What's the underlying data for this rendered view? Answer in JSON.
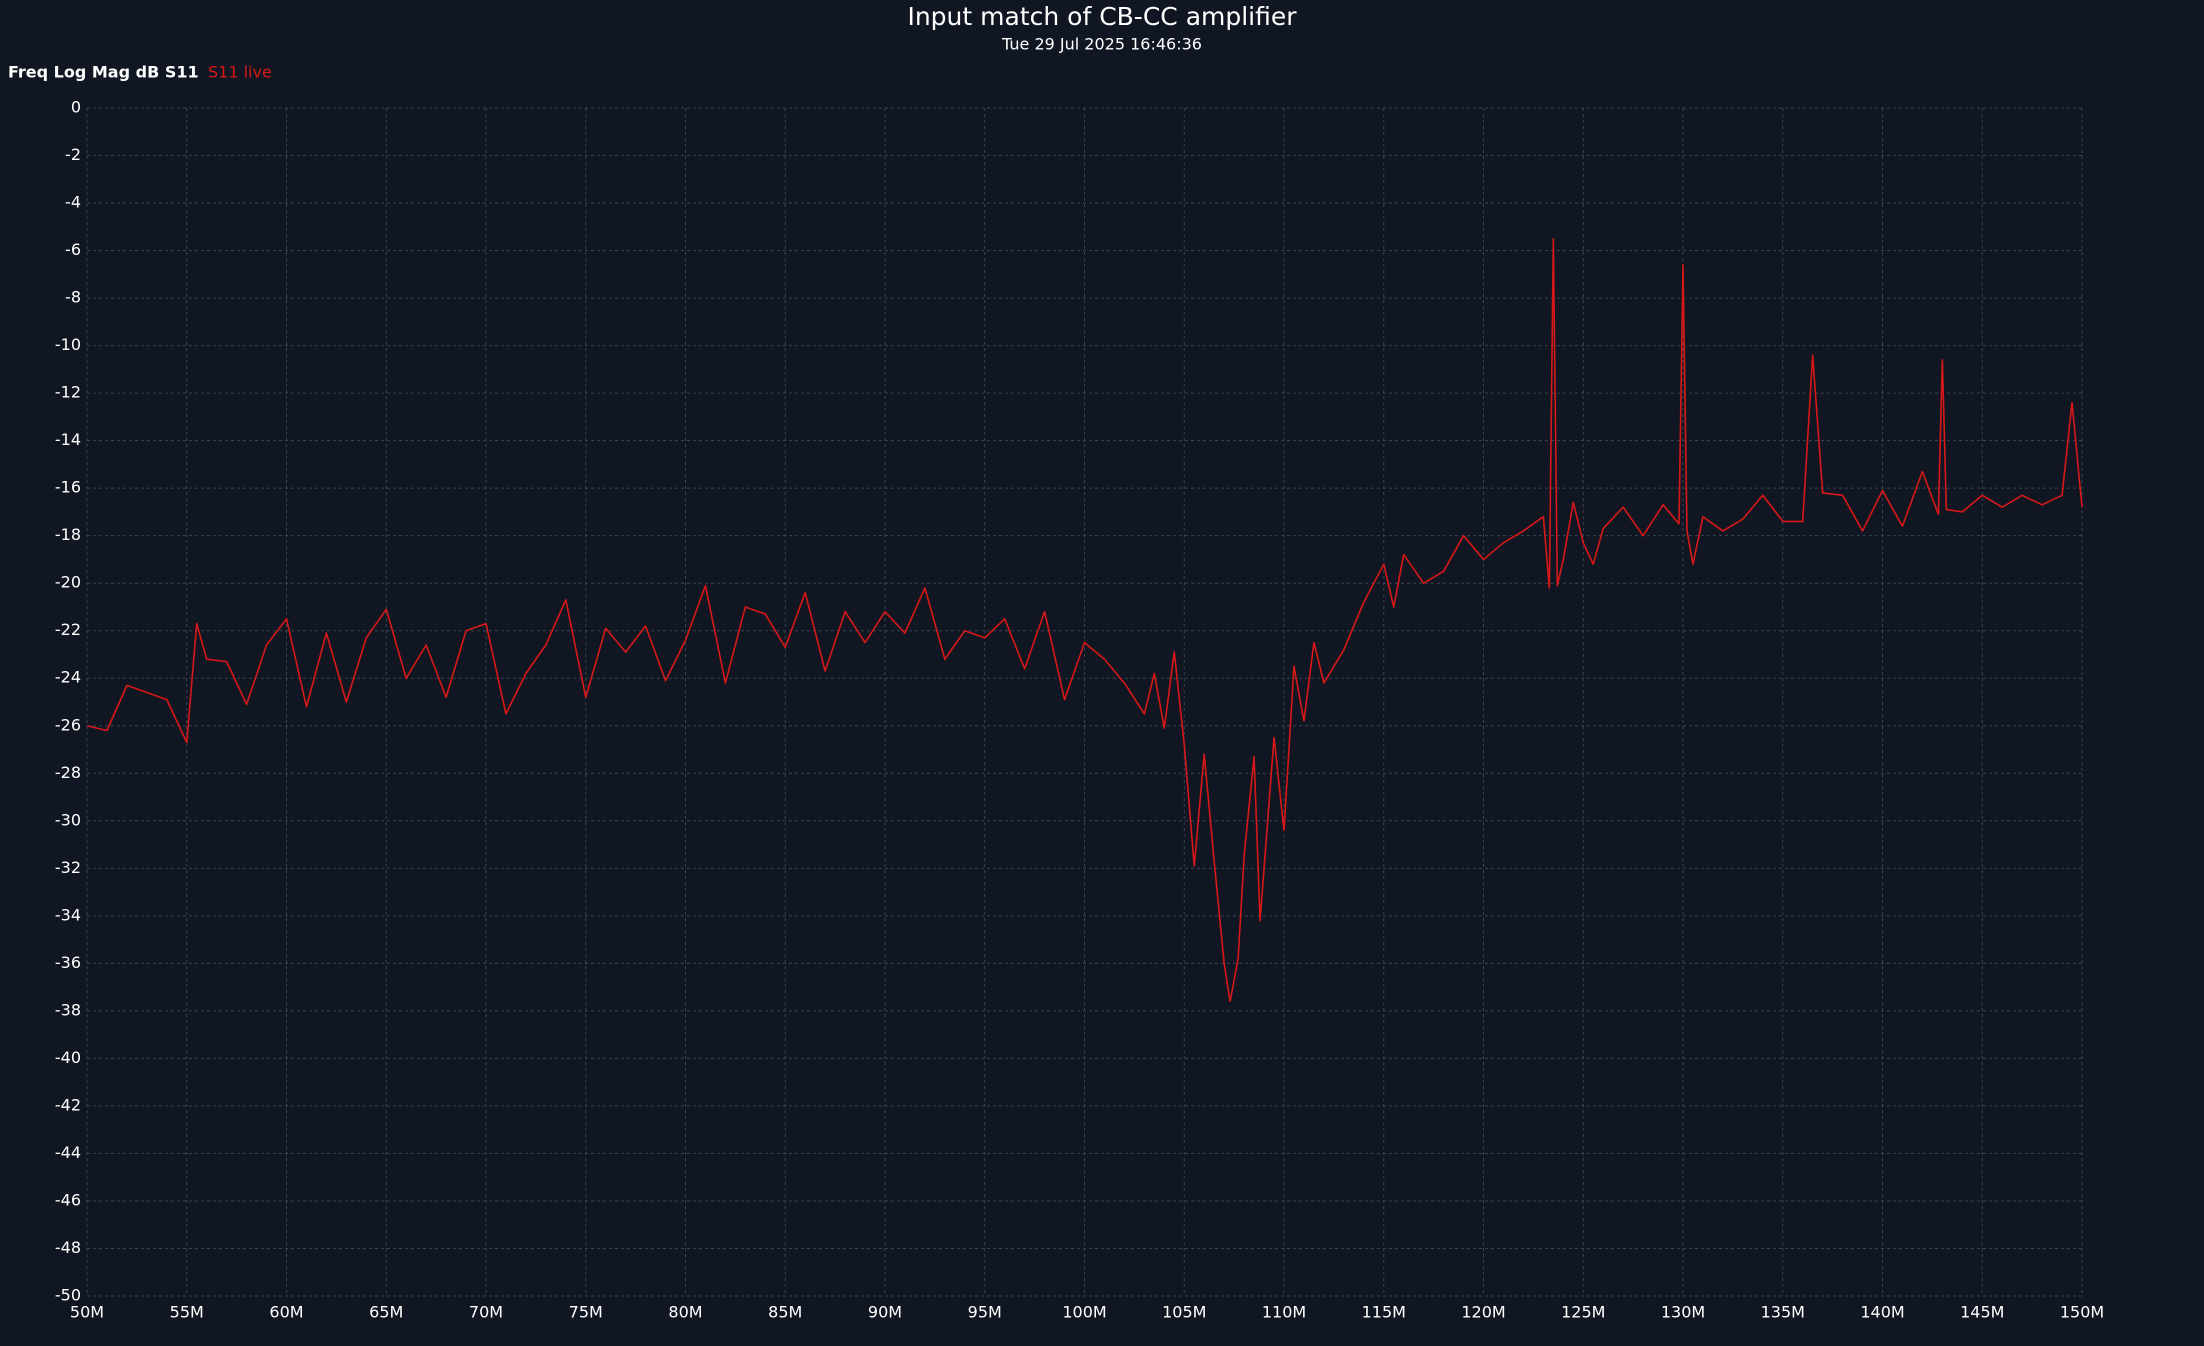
{
  "chart_data": {
    "type": "line",
    "title": "Input match of CB-CC amplifier",
    "subtitle": "Tue 29 Jul 2025 16:46:36",
    "y_label": "Freq Log Mag dB S11",
    "x": [
      50,
      51,
      52,
      53,
      54,
      55,
      55.5,
      56,
      57,
      58,
      59,
      60,
      61,
      62,
      63,
      64,
      65,
      66,
      67,
      68,
      69,
      70,
      71,
      72,
      73,
      74,
      75,
      76,
      77,
      78,
      79,
      80,
      81,
      82,
      83,
      84,
      85,
      86,
      87,
      88,
      89,
      90,
      91,
      92,
      93,
      94,
      95,
      96,
      97,
      98,
      99,
      100,
      101,
      102,
      103,
      103.5,
      104,
      104.5,
      105,
      105.5,
      106,
      106.5,
      107,
      107.3,
      107.7,
      108,
      108.5,
      108.8,
      109.5,
      110,
      110.5,
      111,
      111.5,
      112,
      113,
      114,
      115,
      115.5,
      116,
      117,
      118,
      119,
      120,
      121,
      122,
      123,
      123.3,
      123.5,
      123.7,
      124,
      124.5,
      125,
      125.5,
      126,
      127,
      128,
      129,
      129.8,
      130,
      130.2,
      130.5,
      131,
      132,
      133,
      134,
      135,
      136,
      136.5,
      137,
      138,
      139,
      140,
      141,
      142,
      142.8,
      143,
      143.2,
      144,
      145,
      146,
      147,
      148,
      149,
      149.5,
      150
    ],
    "series": [
      {
        "name": "S11 live",
        "color": "#d81818",
        "values": [
          -26.0,
          -26.2,
          -24.3,
          -24.6,
          -24.9,
          -26.7,
          -21.7,
          -23.2,
          -23.3,
          -25.1,
          -22.6,
          -21.5,
          -25.2,
          -22.1,
          -25.0,
          -22.3,
          -21.1,
          -24.0,
          -22.6,
          -24.8,
          -22.0,
          -21.7,
          -25.5,
          -23.8,
          -22.6,
          -20.7,
          -24.8,
          -21.9,
          -22.9,
          -21.8,
          -24.1,
          -22.4,
          -20.1,
          -24.2,
          -21.0,
          -21.3,
          -22.7,
          -20.4,
          -23.7,
          -21.2,
          -22.5,
          -21.2,
          -22.1,
          -20.2,
          -23.2,
          -22.0,
          -22.3,
          -21.5,
          -23.6,
          -21.2,
          -24.9,
          -22.5,
          -23.2,
          -24.2,
          -25.5,
          -23.8,
          -26.1,
          -22.9,
          -26.8,
          -31.9,
          -27.2,
          -31.7,
          -36.0,
          -37.6,
          -35.8,
          -31.5,
          -27.3,
          -34.2,
          -26.5,
          -30.4,
          -23.5,
          -25.8,
          -22.5,
          -24.2,
          -22.8,
          -20.8,
          -19.2,
          -21.0,
          -18.8,
          -20.0,
          -19.5,
          -18.0,
          -19.0,
          -18.3,
          -17.8,
          -17.2,
          -20.2,
          -5.5,
          -20.1,
          -19.0,
          -16.6,
          -18.3,
          -19.2,
          -17.7,
          -16.8,
          -18.0,
          -16.7,
          -17.5,
          -6.6,
          -17.8,
          -19.2,
          -17.2,
          -17.8,
          -17.3,
          -16.3,
          -17.4,
          -17.4,
          -10.4,
          -16.2,
          -16.3,
          -17.8,
          -16.1,
          -17.6,
          -15.3,
          -17.1,
          -10.6,
          -16.9,
          -17.0,
          -16.3,
          -16.8,
          -16.3,
          -16.7,
          -16.3,
          -12.4,
          -16.8
        ]
      }
    ],
    "xlim": [
      50,
      150
    ],
    "xticks": [
      {
        "value": 50,
        "label": "50M"
      },
      {
        "value": 55,
        "label": "55M"
      },
      {
        "value": 60,
        "label": "60M"
      },
      {
        "value": 65,
        "label": "65M"
      },
      {
        "value": 70,
        "label": "70M"
      },
      {
        "value": 75,
        "label": "75M"
      },
      {
        "value": 80,
        "label": "80M"
      },
      {
        "value": 85,
        "label": "85M"
      },
      {
        "value": 90,
        "label": "90M"
      },
      {
        "value": 95,
        "label": "95M"
      },
      {
        "value": 100,
        "label": "100M"
      },
      {
        "value": 105,
        "label": "105M"
      },
      {
        "value": 110,
        "label": "110M"
      },
      {
        "value": 115,
        "label": "115M"
      },
      {
        "value": 120,
        "label": "120M"
      },
      {
        "value": 125,
        "label": "125M"
      },
      {
        "value": 130,
        "label": "130M"
      },
      {
        "value": 135,
        "label": "135M"
      },
      {
        "value": 140,
        "label": "140M"
      },
      {
        "value": 145,
        "label": "145M"
      },
      {
        "value": 150,
        "label": "150M"
      }
    ],
    "ylim": [
      -50,
      0
    ],
    "yticks": [
      0,
      -2,
      -4,
      -6,
      -8,
      -10,
      -12,
      -14,
      -16,
      -18,
      -20,
      -22,
      -24,
      -26,
      -28,
      -30,
      -32,
      -34,
      -36,
      -38,
      -40,
      -42,
      -44,
      -46,
      -48,
      -50
    ],
    "grid": true
  }
}
